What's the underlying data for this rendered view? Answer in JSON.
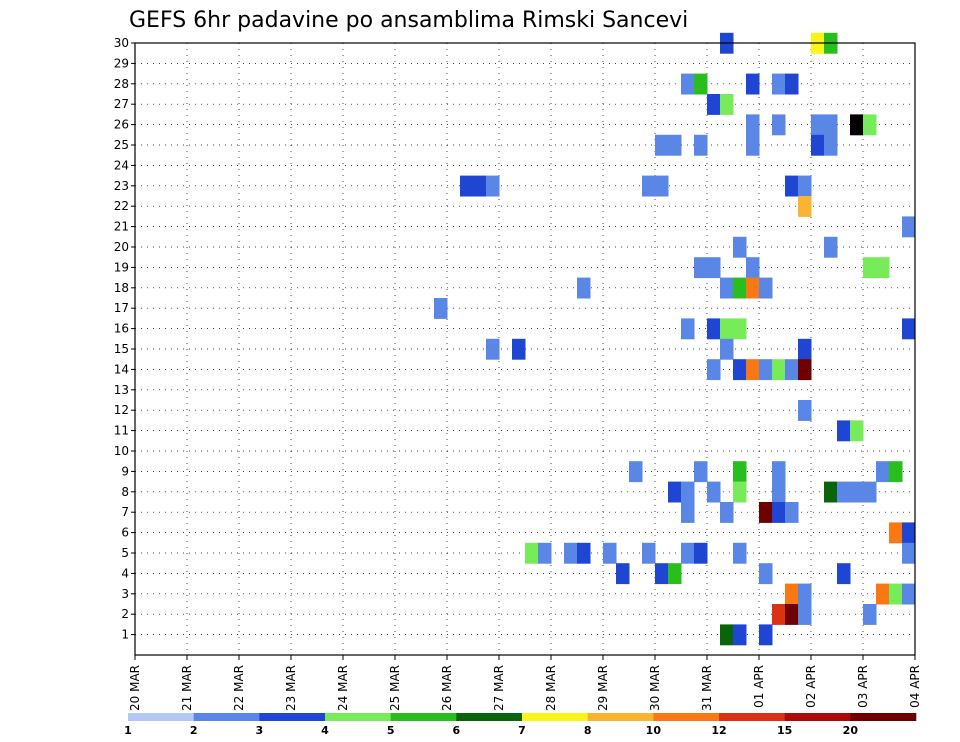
{
  "chart_data": {
    "type": "heatmap",
    "title": "GEFS 6hr padavine po ansamblima Rimski Sancevi",
    "xlabel": "",
    "ylabel": "",
    "x_tick_labels": [
      "20 MAR",
      "21 MAR",
      "22 MAR",
      "23 MAR",
      "24 MAR",
      "25 MAR",
      "26 MAR",
      "27 MAR",
      "28 MAR",
      "29 MAR",
      "30 MAR",
      "31 MAR",
      "01 APR",
      "02 APR",
      "03 APR",
      "04 APR"
    ],
    "y_tick_labels": [
      "1",
      "2",
      "3",
      "4",
      "5",
      "6",
      "7",
      "8",
      "9",
      "10",
      "11",
      "12",
      "13",
      "14",
      "15",
      "16",
      "17",
      "18",
      "19",
      "20",
      "21",
      "22",
      "23",
      "24",
      "25",
      "26",
      "27",
      "28",
      "29",
      "30"
    ],
    "xlim": [
      0,
      60
    ],
    "ylim": [
      0,
      30
    ],
    "x_unit": "6-hour steps from 20 MAR 00Z",
    "grid": true,
    "colorbar": {
      "labels": [
        "1",
        "2",
        "3",
        "4",
        "5",
        "6",
        "7",
        "8",
        "10",
        "12",
        "15",
        "20"
      ],
      "colors": [
        "#b4c8f5",
        "#5a87e6",
        "#1e46d2",
        "#78eb5a",
        "#28be1e",
        "#0a640a",
        "#faf519",
        "#fab432",
        "#fa7814",
        "#dc3214",
        "#aa0a0a",
        "#6e0000"
      ]
    },
    "cells": [
      [
        45,
        30,
        2
      ],
      [
        52,
        30,
        6
      ],
      [
        53,
        30,
        4
      ],
      [
        42,
        28,
        1
      ],
      [
        43,
        28,
        4
      ],
      [
        47,
        28,
        2
      ],
      [
        49,
        28,
        1
      ],
      [
        50,
        28,
        2
      ],
      [
        44,
        27,
        2
      ],
      [
        45,
        27,
        3
      ],
      [
        47,
        26,
        1
      ],
      [
        49,
        26,
        1
      ],
      [
        52,
        26,
        1
      ],
      [
        53,
        26,
        1
      ],
      [
        55,
        26,
        12
      ],
      [
        56,
        26,
        3
      ],
      [
        40,
        25,
        1
      ],
      [
        41,
        25,
        1
      ],
      [
        43,
        25,
        1
      ],
      [
        47,
        25,
        1
      ],
      [
        52,
        25,
        2
      ],
      [
        53,
        25,
        1
      ],
      [
        25,
        23,
        2
      ],
      [
        26,
        23,
        2
      ],
      [
        27,
        23,
        1
      ],
      [
        39,
        23,
        1
      ],
      [
        40,
        23,
        1
      ],
      [
        50,
        23,
        2
      ],
      [
        51,
        23,
        1
      ],
      [
        51,
        22,
        7
      ],
      [
        59,
        21,
        1
      ],
      [
        46,
        20,
        1
      ],
      [
        53,
        20,
        1
      ],
      [
        43,
        19,
        1
      ],
      [
        44,
        19,
        1
      ],
      [
        47,
        19,
        1
      ],
      [
        56,
        19,
        3
      ],
      [
        57,
        19,
        3
      ],
      [
        34,
        18,
        1
      ],
      [
        45,
        18,
        1
      ],
      [
        46,
        18,
        4
      ],
      [
        47,
        18,
        8
      ],
      [
        48,
        18,
        1
      ],
      [
        23,
        17,
        1
      ],
      [
        42,
        16,
        1
      ],
      [
        44,
        16,
        2
      ],
      [
        45,
        16,
        3
      ],
      [
        46,
        16,
        3
      ],
      [
        59,
        16,
        2
      ],
      [
        27,
        15,
        1
      ],
      [
        29,
        15,
        2
      ],
      [
        45,
        15,
        1
      ],
      [
        51,
        15,
        2
      ],
      [
        44,
        14,
        1
      ],
      [
        46,
        14,
        2
      ],
      [
        47,
        14,
        8
      ],
      [
        48,
        14,
        1
      ],
      [
        49,
        14,
        3
      ],
      [
        50,
        14,
        1
      ],
      [
        51,
        14,
        11
      ],
      [
        51,
        12,
        1
      ],
      [
        54,
        11,
        2
      ],
      [
        55,
        11,
        3
      ],
      [
        38,
        9,
        1
      ],
      [
        43,
        9,
        1
      ],
      [
        46,
        9,
        4
      ],
      [
        49,
        9,
        1
      ],
      [
        57,
        9,
        1
      ],
      [
        58,
        9,
        4
      ],
      [
        41,
        8,
        2
      ],
      [
        42,
        8,
        1
      ],
      [
        44,
        8,
        1
      ],
      [
        46,
        8,
        3
      ],
      [
        49,
        8,
        1
      ],
      [
        53,
        8,
        5
      ],
      [
        54,
        8,
        1
      ],
      [
        55,
        8,
        1
      ],
      [
        56,
        8,
        1
      ],
      [
        42,
        7,
        1
      ],
      [
        45,
        7,
        1
      ],
      [
        48,
        7,
        11
      ],
      [
        49,
        7,
        2
      ],
      [
        50,
        7,
        1
      ],
      [
        58,
        6,
        8
      ],
      [
        59,
        6,
        2
      ],
      [
        30,
        5,
        3
      ],
      [
        31,
        5,
        1
      ],
      [
        33,
        5,
        1
      ],
      [
        34,
        5,
        2
      ],
      [
        36,
        5,
        1
      ],
      [
        39,
        5,
        1
      ],
      [
        42,
        5,
        1
      ],
      [
        43,
        5,
        2
      ],
      [
        46,
        5,
        1
      ],
      [
        59,
        5,
        1
      ],
      [
        37,
        4,
        2
      ],
      [
        40,
        4,
        2
      ],
      [
        41,
        4,
        4
      ],
      [
        48,
        4,
        1
      ],
      [
        54,
        4,
        2
      ],
      [
        50,
        3,
        8
      ],
      [
        51,
        3,
        1
      ],
      [
        57,
        3,
        8
      ],
      [
        58,
        3,
        3
      ],
      [
        59,
        3,
        1
      ],
      [
        49,
        2,
        9
      ],
      [
        50,
        2,
        11
      ],
      [
        51,
        2,
        1
      ],
      [
        56,
        2,
        1
      ],
      [
        45,
        1,
        5
      ],
      [
        46,
        1,
        2
      ],
      [
        48,
        1,
        2
      ]
    ]
  }
}
